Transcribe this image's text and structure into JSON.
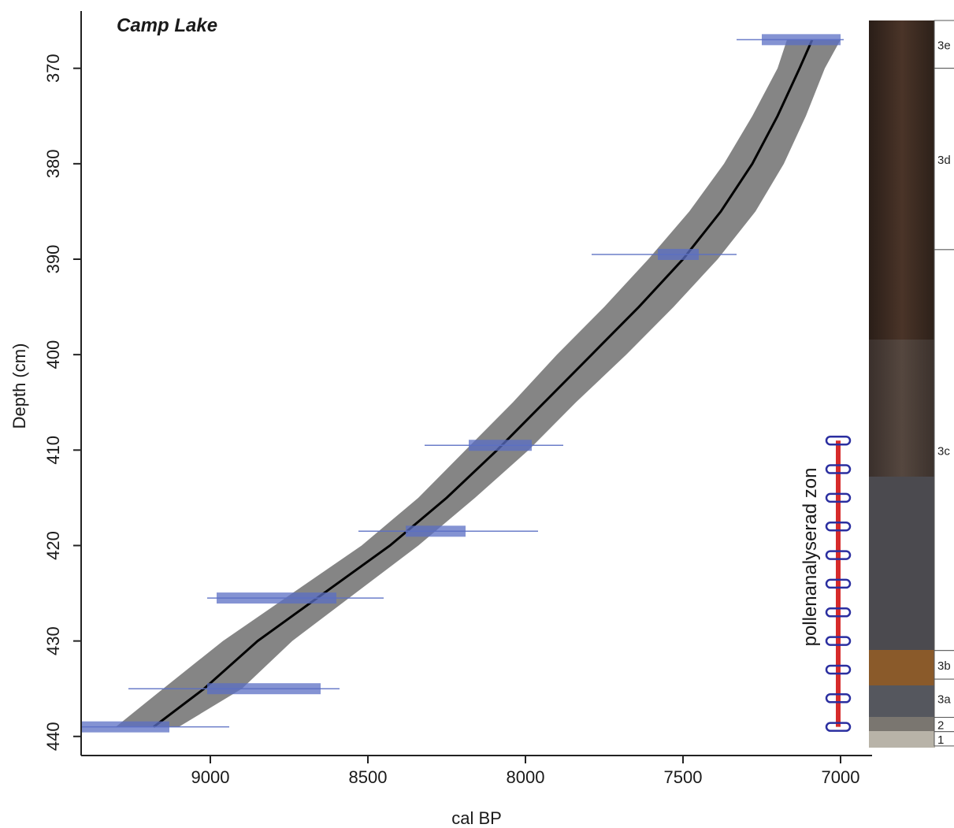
{
  "chart_data": {
    "type": "line",
    "title": "Camp Lake",
    "xlabel": "cal BP",
    "ylabel": "Depth (cm)",
    "xlim": [
      9410,
      6900
    ],
    "ylim": [
      364,
      442
    ],
    "x_reversed": true,
    "y_reversed": true,
    "x_ticks": [
      9000,
      8500,
      8000,
      7500,
      7000
    ],
    "y_ticks": [
      370,
      380,
      390,
      400,
      410,
      420,
      430,
      440
    ],
    "age_model": {
      "depth": [
        367,
        370,
        375,
        380,
        385,
        390,
        395,
        400,
        405,
        410,
        415,
        420,
        425,
        430,
        435,
        439
      ],
      "median": [
        7090,
        7130,
        7200,
        7280,
        7380,
        7500,
        7640,
        7790,
        7940,
        8090,
        8250,
        8430,
        8640,
        8850,
        9020,
        9180
      ],
      "lower": [
        7000,
        7050,
        7110,
        7180,
        7270,
        7390,
        7530,
        7680,
        7840,
        7990,
        8160,
        8340,
        8540,
        8740,
        8900,
        9100
      ],
      "upper": [
        7170,
        7200,
        7280,
        7370,
        7480,
        7610,
        7750,
        7900,
        8040,
        8190,
        8340,
        8520,
        8740,
        8960,
        9150,
        9300
      ]
    },
    "dates": [
      {
        "depth": 367,
        "range_min": 6990,
        "range_max": 7330,
        "core_min": 7000,
        "core_max": 7250
      },
      {
        "depth": 389.5,
        "range_min": 7330,
        "range_max": 7790,
        "core_min": 7450,
        "core_max": 7580
      },
      {
        "depth": 409.5,
        "range_min": 7880,
        "range_max": 8320,
        "core_min": 7980,
        "core_max": 8180
      },
      {
        "depth": 418.5,
        "range_min": 7960,
        "range_max": 8530,
        "core_min": 8190,
        "core_max": 8380
      },
      {
        "depth": 425.5,
        "range_min": 8450,
        "range_max": 9010,
        "core_min": 8600,
        "core_max": 8980
      },
      {
        "depth": 435,
        "range_min": 8590,
        "range_max": 9260,
        "core_min": 8650,
        "core_max": 9010
      },
      {
        "depth": 439,
        "range_min": 8940,
        "range_max": 9410,
        "core_min": 9130,
        "core_max": 9410
      }
    ],
    "pollen_levels": [
      409,
      412,
      415,
      418,
      421,
      424,
      427,
      430,
      433,
      436,
      439
    ],
    "pollen_label": "pollenanalyserad zon",
    "units": [
      {
        "label": "3e",
        "depth_top": 364,
        "depth_bottom": 370
      },
      {
        "label": "3d",
        "depth_top": 370,
        "depth_bottom": 389
      },
      {
        "label": "3c",
        "depth_top": 389,
        "depth_bottom": 431
      },
      {
        "label": "3b",
        "depth_top": 431,
        "depth_bottom": 434
      },
      {
        "label": "3a",
        "depth_top": 434,
        "depth_bottom": 438
      },
      {
        "label": "2",
        "depth_top": 438,
        "depth_bottom": 439.5
      },
      {
        "label": "1",
        "depth_top": 439.5,
        "depth_bottom": 441
      }
    ],
    "colors": {
      "envelope": "#858585",
      "median": "#000000",
      "date": "#5b6fc4",
      "pollen_line": "#d62b2b",
      "pollen_marker": "#2b2fa0"
    },
    "grid": false,
    "legend": "none"
  }
}
